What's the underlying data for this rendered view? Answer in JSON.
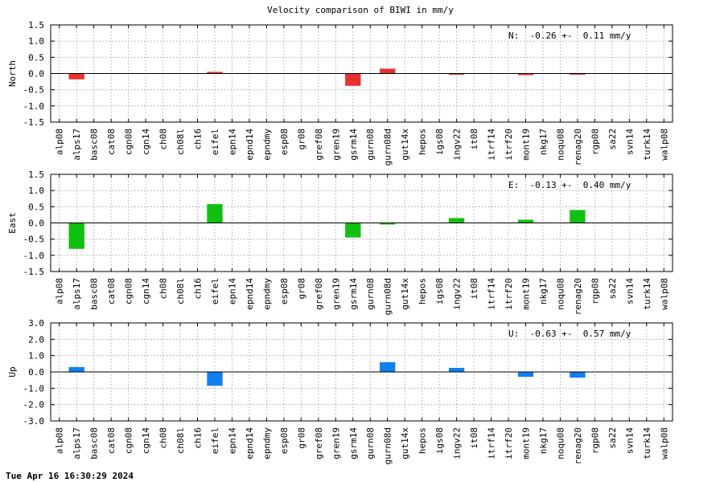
{
  "title": "Velocity comparison of BIWI in mm/y",
  "footer": "Tue Apr 16 16:30:29 2024",
  "chart_data": [
    {
      "type": "bar",
      "ylabel": "North",
      "ylim": [
        -1.5,
        1.5
      ],
      "yticks": [
        "1.5",
        "1.0",
        "0.5",
        "0.0",
        "-0.5",
        "-1.0",
        "-1.5"
      ],
      "annotation": "N:  -0.26 +-  0.11 mm/y",
      "color": "#e83030",
      "grid": true,
      "categories": [
        "alp08",
        "alps17",
        "basc08",
        "cat08",
        "cgn08",
        "cgn14",
        "ch08",
        "ch08l",
        "ch16",
        "eifel",
        "epn14",
        "epnd14",
        "epndmy",
        "esp08",
        "gr08",
        "gref08",
        "gren19",
        "gsrm14",
        "gurn08",
        "gurn08d",
        "gut14x",
        "hepos",
        "igs08",
        "ingv22",
        "it08",
        "itrf14",
        "itrf20",
        "mont19",
        "nkg17",
        "noqu08",
        "renag20",
        "rgp08",
        "sa22",
        "svn14",
        "turk14",
        "walp08"
      ],
      "values": [
        null,
        -0.18,
        null,
        null,
        null,
        null,
        null,
        null,
        null,
        0.05,
        null,
        null,
        null,
        null,
        null,
        null,
        null,
        -0.38,
        null,
        0.15,
        null,
        null,
        null,
        -0.03,
        null,
        null,
        null,
        -0.05,
        null,
        null,
        -0.03,
        null,
        null,
        null,
        null,
        null
      ]
    },
    {
      "type": "bar",
      "ylabel": "East",
      "ylim": [
        -1.5,
        1.5
      ],
      "yticks": [
        "1.5",
        "1.0",
        "0.5",
        "0.0",
        "-0.5",
        "-1.0",
        "-1.5"
      ],
      "annotation": "E:  -0.13 +-  0.40 mm/y",
      "color": "#10c010",
      "grid": true,
      "categories": [
        "alp08",
        "alps17",
        "basc08",
        "cat08",
        "cgn08",
        "cgn14",
        "ch08",
        "ch08l",
        "ch16",
        "eifel",
        "epn14",
        "epnd14",
        "epndmy",
        "esp08",
        "gr08",
        "gref08",
        "gren19",
        "gsrm14",
        "gurn08",
        "gurn08d",
        "gut14x",
        "hepos",
        "igs08",
        "ingv22",
        "it08",
        "itrf14",
        "itrf20",
        "mont19",
        "nkg17",
        "noqu08",
        "renag20",
        "rgp08",
        "sa22",
        "svn14",
        "turk14",
        "walp08"
      ],
      "values": [
        null,
        -0.8,
        null,
        null,
        null,
        null,
        null,
        null,
        null,
        0.58,
        null,
        null,
        null,
        null,
        null,
        null,
        null,
        -0.45,
        null,
        -0.05,
        null,
        null,
        null,
        0.15,
        null,
        null,
        null,
        0.1,
        null,
        null,
        0.4,
        null,
        null,
        null,
        null,
        null
      ]
    },
    {
      "type": "bar",
      "ylabel": "Up",
      "ylim": [
        -3.0,
        3.0
      ],
      "yticks": [
        "3.0",
        "2.0",
        "1.0",
        "0.0",
        "-1.0",
        "-2.0",
        "-3.0"
      ],
      "annotation": "U:  -0.63 +-  0.57 mm/y",
      "color": "#1080f0",
      "grid": true,
      "categories": [
        "alp08",
        "alps17",
        "basc08",
        "cat08",
        "cgn08",
        "cgn14",
        "ch08",
        "ch08l",
        "ch16",
        "eifel",
        "epn14",
        "epnd14",
        "epndmy",
        "esp08",
        "gr08",
        "gref08",
        "gren19",
        "gsrm14",
        "gurn08",
        "gurn08d",
        "gut14x",
        "hepos",
        "igs08",
        "ingv22",
        "it08",
        "itrf14",
        "itrf20",
        "mont19",
        "nkg17",
        "noqu08",
        "renag20",
        "rgp08",
        "sa22",
        "svn14",
        "turk14",
        "walp08"
      ],
      "values": [
        null,
        0.3,
        null,
        null,
        null,
        null,
        null,
        null,
        null,
        -0.85,
        null,
        null,
        null,
        null,
        null,
        null,
        null,
        null,
        null,
        0.6,
        null,
        null,
        null,
        0.25,
        null,
        null,
        null,
        -0.3,
        null,
        null,
        -0.35,
        null,
        null,
        null,
        null,
        null
      ]
    }
  ]
}
